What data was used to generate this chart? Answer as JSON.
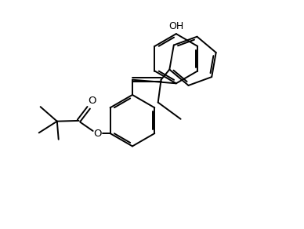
{
  "background": "#ffffff",
  "line_color": "#000000",
  "lw": 1.4,
  "figsize": [
    3.88,
    2.92
  ],
  "dpi": 100,
  "xlim": [
    0,
    10
  ],
  "ylim": [
    0,
    7.5
  ]
}
